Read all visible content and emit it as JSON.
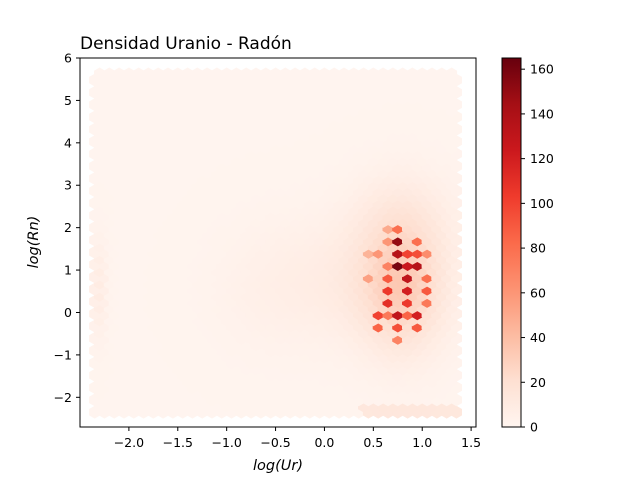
{
  "chart_data": {
    "type": "hexbin",
    "title": "Densidad Uranio - Radón",
    "xlabel": "log(Ur)",
    "ylabel": "log(Rn)",
    "xlim": [
      -2.5,
      1.55
    ],
    "ylim": [
      -2.7,
      6.0
    ],
    "xticks": [
      -2.0,
      -1.5,
      -1.0,
      -0.5,
      0.0,
      0.5,
      1.0,
      1.5
    ],
    "xtick_labels": [
      "−2.0",
      "−1.5",
      "−1.0",
      "−0.5",
      "0.0",
      "0.5",
      "1.0",
      "1.5"
    ],
    "yticks": [
      -2,
      -1,
      0,
      1,
      2,
      3,
      4,
      5,
      6
    ],
    "ytick_labels": [
      "−2",
      "−1",
      "0",
      "1",
      "2",
      "3",
      "4",
      "5",
      "6"
    ],
    "colormap": "Reds",
    "colorbar": {
      "min": 0,
      "max": 165,
      "ticks": [
        0,
        20,
        40,
        60,
        80,
        100,
        120,
        140,
        160
      ],
      "tick_labels": [
        "0",
        "20",
        "40",
        "60",
        "80",
        "100",
        "120",
        "140",
        "160"
      ]
    },
    "grid": false,
    "hex_grid": {
      "x_start": -2.35,
      "x_step": 0.1,
      "y_start": -2.35,
      "y_step": 0.29
    },
    "hexbins": [
      {
        "x": 0.55,
        "y": 0.4,
        "count": 95
      },
      {
        "x": 0.55,
        "y": 0.1,
        "count": 100
      },
      {
        "x": 0.55,
        "y": -0.2,
        "count": 85
      },
      {
        "x": 0.55,
        "y": 0.7,
        "count": 80
      },
      {
        "x": 0.65,
        "y": 0.25,
        "count": 110
      },
      {
        "x": 0.65,
        "y": 0.55,
        "count": 105
      },
      {
        "x": 0.65,
        "y": 0.85,
        "count": 90
      },
      {
        "x": 0.65,
        "y": -0.05,
        "count": 75
      },
      {
        "x": 0.65,
        "y": 1.15,
        "count": 70
      },
      {
        "x": 0.65,
        "y": 1.75,
        "count": 60
      },
      {
        "x": 0.65,
        "y": 2.05,
        "count": 50
      },
      {
        "x": 0.75,
        "y": 1.6,
        "count": 150
      },
      {
        "x": 0.75,
        "y": 1.3,
        "count": 135
      },
      {
        "x": 0.75,
        "y": 1.0,
        "count": 160
      },
      {
        "x": 0.75,
        "y": 0.7,
        "count": 140
      },
      {
        "x": 0.75,
        "y": 0.4,
        "count": 155
      },
      {
        "x": 0.75,
        "y": 0.1,
        "count": 130
      },
      {
        "x": 0.75,
        "y": -0.2,
        "count": 95
      },
      {
        "x": 0.75,
        "y": -0.5,
        "count": 70
      },
      {
        "x": 0.75,
        "y": 1.9,
        "count": 80
      },
      {
        "x": 0.85,
        "y": 1.45,
        "count": 100
      },
      {
        "x": 0.85,
        "y": 1.15,
        "count": 125
      },
      {
        "x": 0.85,
        "y": 0.85,
        "count": 130
      },
      {
        "x": 0.85,
        "y": 0.55,
        "count": 120
      },
      {
        "x": 0.85,
        "y": 0.25,
        "count": 105
      },
      {
        "x": 0.85,
        "y": -0.05,
        "count": 85
      },
      {
        "x": 0.95,
        "y": 1.0,
        "count": 135
      },
      {
        "x": 0.95,
        "y": 0.7,
        "count": 150
      },
      {
        "x": 0.95,
        "y": 0.4,
        "count": 140
      },
      {
        "x": 0.95,
        "y": 0.1,
        "count": 120
      },
      {
        "x": 0.95,
        "y": 1.3,
        "count": 95
      },
      {
        "x": 0.95,
        "y": 1.6,
        "count": 80
      },
      {
        "x": 0.95,
        "y": -0.2,
        "count": 90
      },
      {
        "x": 1.05,
        "y": 0.85,
        "count": 80
      },
      {
        "x": 1.05,
        "y": 0.55,
        "count": 90
      },
      {
        "x": 1.05,
        "y": 0.25,
        "count": 75
      },
      {
        "x": 1.05,
        "y": 1.45,
        "count": 65
      },
      {
        "x": 1.15,
        "y": 0.7,
        "count": 55
      },
      {
        "x": 1.15,
        "y": 0.4,
        "count": 50
      },
      {
        "x": 0.55,
        "y": 1.3,
        "count": 60
      },
      {
        "x": 0.45,
        "y": 0.85,
        "count": 55
      },
      {
        "x": 0.45,
        "y": 1.45,
        "count": 45
      }
    ]
  }
}
